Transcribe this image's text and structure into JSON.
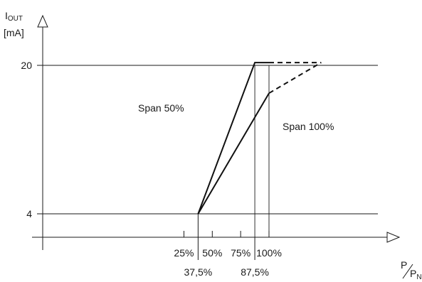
{
  "chart_data": {
    "type": "line",
    "y_axis": {
      "label_main": "I",
      "label_sub": "OUT",
      "unit": "[mA]"
    },
    "x_axis": {
      "label_num": "P",
      "label_den": "P",
      "label_den_sub": "N"
    },
    "yticks": [
      {
        "value": 4,
        "label": "4"
      },
      {
        "value": 20,
        "label": "20"
      }
    ],
    "xticks_top": [
      {
        "value": 25,
        "label": "25%"
      },
      {
        "value": 50,
        "label": "50%"
      },
      {
        "value": 75,
        "label": "75%"
      },
      {
        "value": 100,
        "label": "100%"
      }
    ],
    "xticks_bottom": [
      {
        "value": 37.5,
        "label": "37,5%"
      },
      {
        "value": 87.5,
        "label": "87,5%"
      }
    ],
    "series": [
      {
        "name": "Span 50%",
        "solid": [
          [
            37.5,
            4
          ],
          [
            87.5,
            20.3
          ],
          [
            100,
            20.3
          ]
        ],
        "dashed": [
          [
            100,
            20.3
          ],
          [
            146,
            20.3
          ]
        ]
      },
      {
        "name": "Span 100%",
        "solid": [
          [
            37.5,
            4
          ],
          [
            100,
            17
          ]
        ],
        "dashed": [
          [
            100,
            17
          ],
          [
            146,
            20.3
          ]
        ]
      }
    ]
  }
}
